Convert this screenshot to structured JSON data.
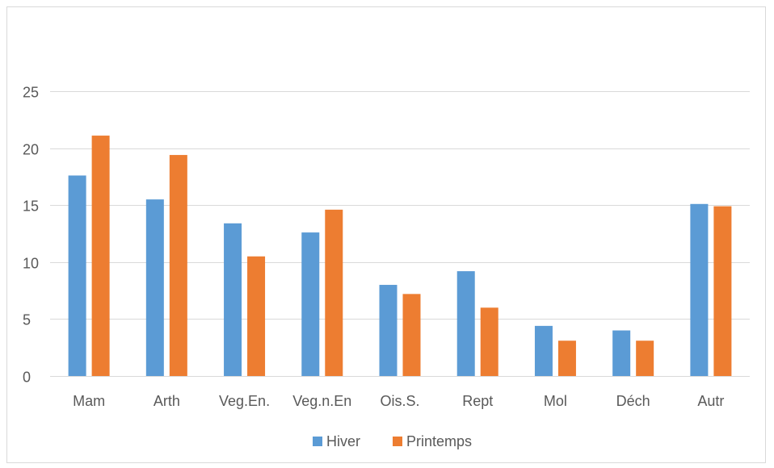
{
  "chart_data": {
    "type": "bar",
    "title": "",
    "xlabel": "",
    "ylabel": "",
    "categories": [
      "Mam",
      "Arth",
      "Veg.En.",
      "Veg.n.En",
      "Ois.S.",
      "Rept",
      "Mol",
      "Déch",
      "Autr"
    ],
    "series": [
      {
        "name": "Hiver",
        "color": "#5b9bd5",
        "values": [
          17.6,
          15.5,
          13.4,
          12.6,
          8.0,
          9.2,
          4.4,
          4.0,
          15.1
        ]
      },
      {
        "name": "Printemps",
        "color": "#ed7d31",
        "values": [
          21.1,
          19.4,
          10.5,
          14.6,
          7.2,
          6.0,
          3.1,
          3.1,
          14.9
        ]
      }
    ],
    "ylim": [
      0,
      25
    ],
    "yticks": [
      0,
      5,
      10,
      15,
      20,
      25
    ],
    "ytick_labels": [
      "0",
      "5",
      "10",
      "15",
      "20",
      "25"
    ],
    "grid": true,
    "legend": "bottom",
    "gridline_color": "#d9d9d9",
    "text_color": "#595959"
  }
}
